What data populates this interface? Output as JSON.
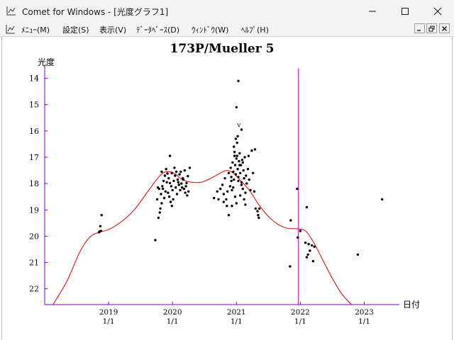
{
  "window": {
    "title": "Comet for Windows - [光度グラフ1]",
    "icon": "graph-icon",
    "controls": {
      "minimize": "minimize-icon",
      "maximize": "maximize-icon",
      "close": "close-icon"
    }
  },
  "menubar": {
    "items": [
      {
        "label": "ﾒﾆｭｰ(M)"
      },
      {
        "label": "設定(S)"
      },
      {
        "label": "表示(V)"
      },
      {
        "label": "ﾃﾞｰﾀﾍﾞｰｽ(D)"
      },
      {
        "label": "ｳｨﾝﾄﾞｳ(W)"
      },
      {
        "label": "ﾍﾙﾌﾟ(H)"
      }
    ],
    "mdi_controls": {
      "minimize": "mdi-minimize-icon",
      "restore": "mdi-restore-icon",
      "close": "mdi-close-icon"
    }
  },
  "colors": {
    "axis": "#7a00d0",
    "curve": "#d80000",
    "marker": "#cc00cc",
    "points": "#000000"
  },
  "chart_data": {
    "type": "scatter",
    "title": "173P/Mueller 5",
    "ylabel": "光度",
    "xlabel": "日付",
    "y_inverted": true,
    "ylim": [
      22.6,
      13.5
    ],
    "xlim": [
      2018.0,
      2023.55
    ],
    "y_ticks": [
      14,
      15,
      16,
      17,
      18,
      19,
      20,
      21,
      22
    ],
    "x_ticks": [
      {
        "x": 2019,
        "year": "2019",
        "day": "1/1"
      },
      {
        "x": 2020,
        "year": "2020",
        "day": "1/1"
      },
      {
        "x": 2021,
        "year": "2021",
        "day": "1/1"
      },
      {
        "x": 2022,
        "year": "2022",
        "day": "1/1"
      },
      {
        "x": 2023,
        "year": "2023",
        "day": "1/1"
      }
    ],
    "marker_x": 2021.97,
    "annotation": {
      "text": "v",
      "x": 2021.04,
      "y": 15.85
    },
    "curve": [
      [
        2018.13,
        22.6
      ],
      [
        2018.35,
        21.7
      ],
      [
        2018.55,
        20.6
      ],
      [
        2018.7,
        20.05
      ],
      [
        2018.85,
        19.85
      ],
      [
        2019.0,
        19.75
      ],
      [
        2019.2,
        19.45
      ],
      [
        2019.4,
        19.0
      ],
      [
        2019.6,
        18.35
      ],
      [
        2019.75,
        17.85
      ],
      [
        2019.85,
        17.6
      ],
      [
        2019.95,
        17.55
      ],
      [
        2020.05,
        17.65
      ],
      [
        2020.15,
        17.85
      ],
      [
        2020.3,
        17.95
      ],
      [
        2020.45,
        17.95
      ],
      [
        2020.6,
        17.8
      ],
      [
        2020.75,
        17.6
      ],
      [
        2020.85,
        17.5
      ],
      [
        2020.95,
        17.6
      ],
      [
        2021.05,
        17.85
      ],
      [
        2021.2,
        18.25
      ],
      [
        2021.35,
        18.8
      ],
      [
        2021.5,
        19.25
      ],
      [
        2021.65,
        19.55
      ],
      [
        2021.8,
        19.7
      ],
      [
        2021.95,
        19.72
      ],
      [
        2022.08,
        19.8
      ],
      [
        2022.2,
        20.2
      ],
      [
        2022.35,
        20.9
      ],
      [
        2022.5,
        21.6
      ],
      [
        2022.65,
        22.2
      ],
      [
        2022.8,
        22.6
      ]
    ],
    "points": [
      [
        2018.86,
        19.82
      ],
      [
        2018.88,
        19.8
      ],
      [
        2018.87,
        19.62
      ],
      [
        2018.89,
        19.2
      ],
      [
        2018.85,
        19.85
      ],
      [
        2019.73,
        20.15
      ],
      [
        2019.78,
        19.3
      ],
      [
        2019.8,
        19.1
      ],
      [
        2019.76,
        18.6
      ],
      [
        2019.82,
        18.4
      ],
      [
        2019.79,
        18.2
      ],
      [
        2019.84,
        18.1
      ],
      [
        2019.86,
        17.9
      ],
      [
        2019.88,
        17.7
      ],
      [
        2019.83,
        17.55
      ],
      [
        2019.9,
        17.45
      ],
      [
        2019.92,
        17.62
      ],
      [
        2019.94,
        17.8
      ],
      [
        2019.96,
        17.98
      ],
      [
        2019.98,
        18.1
      ],
      [
        2020.0,
        18.25
      ],
      [
        2020.02,
        17.9
      ],
      [
        2020.04,
        17.7
      ],
      [
        2020.06,
        17.55
      ],
      [
        2020.08,
        17.85
      ],
      [
        2020.1,
        18.05
      ],
      [
        2020.12,
        18.25
      ],
      [
        2020.14,
        18.0
      ],
      [
        2020.16,
        17.8
      ],
      [
        2020.18,
        18.2
      ],
      [
        2020.2,
        18.35
      ],
      [
        2020.22,
        17.98
      ],
      [
        2020.24,
        17.72
      ],
      [
        2019.95,
        18.5
      ],
      [
        2019.97,
        18.7
      ],
      [
        2019.99,
        18.85
      ],
      [
        2020.01,
        18.6
      ],
      [
        2019.93,
        18.35
      ],
      [
        2019.87,
        18.55
      ],
      [
        2019.81,
        18.95
      ],
      [
        2019.85,
        18.2
      ],
      [
        2019.91,
        17.95
      ],
      [
        2020.03,
        17.4
      ],
      [
        2019.96,
        16.95
      ],
      [
        2020.07,
        18.4
      ],
      [
        2020.11,
        17.65
      ],
      [
        2020.15,
        18.15
      ],
      [
        2020.19,
        17.5
      ],
      [
        2020.25,
        18.3
      ],
      [
        2019.89,
        18.3
      ],
      [
        2020.05,
        18.15
      ],
      [
        2020.09,
        17.95
      ],
      [
        2020.13,
        17.55
      ],
      [
        2020.21,
        18.1
      ],
      [
        2020.27,
        17.4
      ],
      [
        2019.77,
        18.15
      ],
      [
        2019.83,
        18.75
      ],
      [
        2019.99,
        17.6
      ],
      [
        2020.23,
        18.45
      ],
      [
        2020.17,
        17.85
      ],
      [
        2020.65,
        18.55
      ],
      [
        2020.7,
        18.3
      ],
      [
        2020.72,
        18.6
      ],
      [
        2020.75,
        18.2
      ],
      [
        2020.78,
        18.05
      ],
      [
        2020.8,
        18.4
      ],
      [
        2020.82,
        17.8
      ],
      [
        2020.84,
        18.6
      ],
      [
        2020.86,
        18.3
      ],
      [
        2020.88,
        17.6
      ],
      [
        2020.9,
        18.1
      ],
      [
        2020.91,
        17.4
      ],
      [
        2020.92,
        17.9
      ],
      [
        2020.93,
        18.25
      ],
      [
        2020.94,
        17.2
      ],
      [
        2020.95,
        17.55
      ],
      [
        2020.96,
        17.85
      ],
      [
        2020.97,
        16.8
      ],
      [
        2020.98,
        17.3
      ],
      [
        2020.99,
        17.65
      ],
      [
        2021.0,
        17.05
      ],
      [
        2021.01,
        16.95
      ],
      [
        2021.02,
        17.45
      ],
      [
        2021.03,
        17.75
      ],
      [
        2021.04,
        17.15
      ],
      [
        2021.05,
        16.85
      ],
      [
        2021.06,
        17.6
      ],
      [
        2021.07,
        17.3
      ],
      [
        2021.08,
        17.95
      ],
      [
        2021.09,
        17.1
      ],
      [
        2021.1,
        18.2
      ],
      [
        2021.11,
        17.5
      ],
      [
        2021.12,
        17.8
      ],
      [
        2021.13,
        17.0
      ],
      [
        2021.14,
        18.35
      ],
      [
        2021.15,
        17.7
      ],
      [
        2021.16,
        18.0
      ],
      [
        2021.18,
        17.45
      ],
      [
        2021.2,
        17.85
      ],
      [
        2021.22,
        18.25
      ],
      [
        2021.24,
        16.75
      ],
      [
        2021.26,
        17.6
      ],
      [
        2021.28,
        18.3
      ],
      [
        2020.98,
        18.5
      ],
      [
        2021.0,
        18.75
      ],
      [
        2020.96,
        16.6
      ],
      [
        2021.01,
        16.45
      ],
      [
        2020.99,
        16.3
      ],
      [
        2021.02,
        16.2
      ],
      [
        2020.97,
        16.95
      ],
      [
        2021.05,
        17.3
      ],
      [
        2020.95,
        18.15
      ],
      [
        2020.93,
        18.85
      ],
      [
        2020.88,
        19.2
      ],
      [
        2020.85,
        18.85
      ],
      [
        2020.8,
        18.7
      ],
      [
        2021.12,
        18.6
      ],
      [
        2021.14,
        18.8
      ],
      [
        2021.1,
        17.2
      ],
      [
        2021.03,
        17.9
      ],
      [
        2021.06,
        18.45
      ],
      [
        2021.08,
        18.05
      ],
      [
        2020.92,
        17.75
      ],
      [
        2021.19,
        16.95
      ],
      [
        2021.29,
        16.7
      ],
      [
        2021.03,
        14.1
      ],
      [
        2021.0,
        15.1
      ],
      [
        2021.08,
        15.95
      ],
      [
        2021.3,
        18.95
      ],
      [
        2021.33,
        19.05
      ],
      [
        2021.34,
        19.2
      ],
      [
        2021.36,
        18.95
      ],
      [
        2021.35,
        19.3
      ],
      [
        2021.85,
        19.4
      ],
      [
        2021.95,
        18.2
      ],
      [
        2021.96,
        20.05
      ],
      [
        2022.0,
        19.8
      ],
      [
        2021.84,
        21.15
      ],
      [
        2022.1,
        18.9
      ],
      [
        2022.08,
        20.25
      ],
      [
        2022.12,
        20.7
      ],
      [
        2022.15,
        20.55
      ],
      [
        2022.18,
        20.35
      ],
      [
        2022.2,
        20.95
      ],
      [
        2022.13,
        20.3
      ],
      [
        2022.22,
        20.4
      ],
      [
        2022.1,
        20.8
      ],
      [
        2022.9,
        20.7
      ],
      [
        2023.28,
        18.6
      ]
    ]
  }
}
